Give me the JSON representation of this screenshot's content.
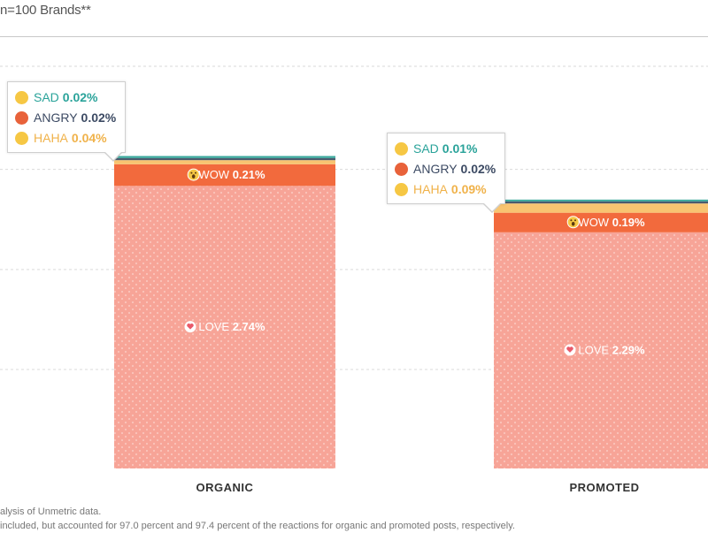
{
  "subtitle": "n=100 Brands**",
  "footnotes": [
    "alysis of Unmetric data.",
    "included, but accounted for 97.0 percent and 97.4 percent of the reactions for organic and promoted posts, respectively."
  ],
  "colors": {
    "love": "#f7a497",
    "wow": "#f26a3d",
    "haha": "#f8c471",
    "angry": "#4a5a6e",
    "sad": "#3aa89c",
    "gridline": "#d9d9d9"
  },
  "icons": {
    "love": "heart-icon",
    "wow": "wow-face-icon",
    "haha": "haha-face-icon",
    "angry": "angry-face-icon",
    "sad": "sad-face-icon"
  },
  "chart_data": {
    "type": "bar",
    "stacked": true,
    "categories": [
      "ORGANIC",
      "PROMOTED"
    ],
    "series": [
      {
        "name": "LOVE",
        "values": [
          2.74,
          2.29
        ],
        "labels": [
          "2.74%",
          "2.29%"
        ]
      },
      {
        "name": "WOW",
        "values": [
          0.21,
          0.19
        ],
        "labels": [
          "0.21%",
          "0.19%"
        ]
      },
      {
        "name": "HAHA",
        "values": [
          0.04,
          0.09
        ],
        "labels": [
          "0.04%",
          "0.09%"
        ]
      },
      {
        "name": "ANGRY",
        "values": [
          0.02,
          0.02
        ],
        "labels": [
          "0.02%",
          "0.02%"
        ]
      },
      {
        "name": "SAD",
        "values": [
          0.02,
          0.01
        ],
        "labels": [
          "0.02%",
          "0.01%"
        ]
      }
    ],
    "ylim": [
      0,
      3.9
    ],
    "grid": true
  }
}
